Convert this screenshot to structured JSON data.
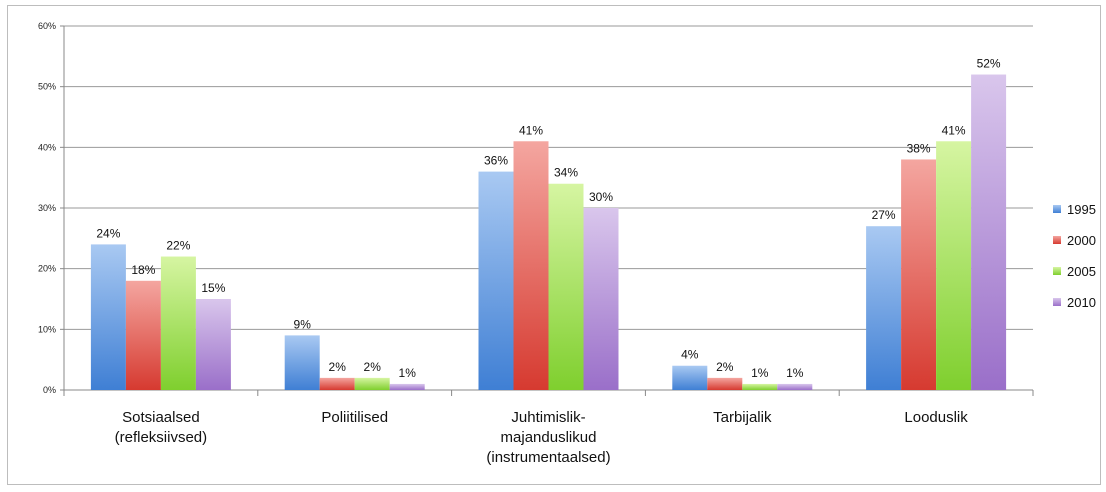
{
  "chart_data": {
    "type": "bar",
    "categories": [
      [
        "Sotsiaalsed",
        "(refleksiivsed)"
      ],
      [
        "Poliitilised"
      ],
      [
        "Juhtimislik-",
        "majanduslikud",
        "(instrumentaalsed)"
      ],
      [
        "Tarbijalik"
      ],
      [
        "Looduslik"
      ]
    ],
    "series": [
      {
        "name": "1995",
        "values": [
          24,
          9,
          36,
          4,
          27
        ],
        "labels": [
          "24%",
          "9%",
          "36%",
          "4%",
          "27%"
        ],
        "color_light": "#a9c9f2",
        "color_dark": "#3f7fd4"
      },
      {
        "name": "2000",
        "values": [
          18,
          2,
          41,
          2,
          38
        ],
        "labels": [
          "18%",
          "2%",
          "41%",
          "2%",
          "38%"
        ],
        "color_light": "#f4a6a0",
        "color_dark": "#d63a30"
      },
      {
        "name": "2005",
        "values": [
          22,
          2,
          34,
          1,
          41
        ],
        "labels": [
          "22%",
          "2%",
          "34%",
          "1%",
          "41%"
        ],
        "color_light": "#d6f5a2",
        "color_dark": "#7fcf2e"
      },
      {
        "name": "2010",
        "values": [
          15,
          1,
          30,
          1,
          52
        ],
        "labels": [
          "15%",
          "1%",
          "30%",
          "1%",
          "52%"
        ],
        "color_light": "#d9c6ec",
        "color_dark": "#9a6fc9"
      }
    ],
    "yticks": [
      "0%",
      "10%",
      "20%",
      "30%",
      "40%",
      "50%",
      "60%"
    ],
    "ylim": [
      0,
      60
    ],
    "grid": true,
    "legend_position": "right"
  }
}
